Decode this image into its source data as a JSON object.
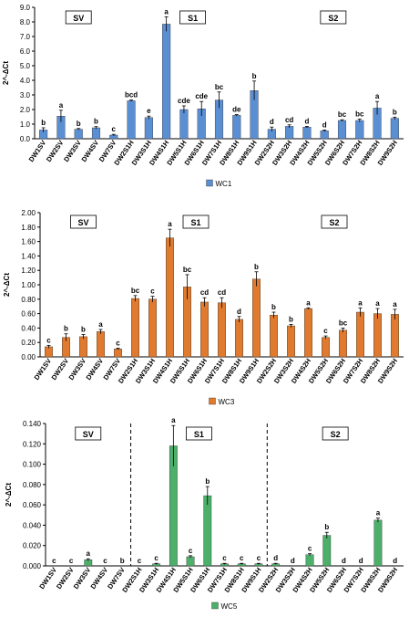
{
  "chart_data": [
    {
      "type": "bar",
      "ylabel": "2^-ΔCt",
      "ylim": [
        0,
        9
      ],
      "yticks": [
        "0.0",
        "1.0",
        "2.0",
        "3.0",
        "4.0",
        "5.0",
        "6.0",
        "7.0",
        "8.0",
        "9.0"
      ],
      "categories": [
        "DW1SV",
        "DW2SV",
        "DW3SV",
        "DW4SV",
        "DW7SV",
        "DW2S1H",
        "DW3S1H",
        "DW4S1H",
        "DW5S1H",
        "DW6S1H",
        "DW7S1H",
        "DW8S1H",
        "DW9S1H",
        "DW2S2H",
        "DW3S2H",
        "DW4S2H",
        "DW5S2H",
        "DW6S2H",
        "DW7S2H",
        "DW8S2H",
        "DW9S2H"
      ],
      "groups": [
        {
          "label": "SV",
          "start": 0,
          "end": 4
        },
        {
          "label": "S1",
          "start": 5,
          "end": 12
        },
        {
          "label": "S2",
          "start": 13,
          "end": 20
        }
      ],
      "dividers": false,
      "series": [
        {
          "name": "WC1",
          "color": "#5B8FD4",
          "values": [
            0.6,
            1.55,
            0.65,
            0.75,
            0.25,
            2.6,
            1.45,
            7.85,
            2.0,
            2.05,
            2.65,
            1.6,
            3.3,
            0.65,
            0.85,
            0.8,
            0.55,
            1.25,
            1.25,
            2.1,
            1.4
          ],
          "errors": [
            0.15,
            0.4,
            0.05,
            0.08,
            0.05,
            0.05,
            0.1,
            0.5,
            0.25,
            0.5,
            0.55,
            0.05,
            0.65,
            0.15,
            0.1,
            0.05,
            0.05,
            0.05,
            0.1,
            0.45,
            0.08
          ],
          "significance": [
            "b",
            "a",
            "b",
            "b",
            "c",
            "bcd",
            "e",
            "a",
            "cde",
            "cde",
            "bc",
            "de",
            "b",
            "d",
            "cd",
            "d",
            "d",
            "bc",
            "bc",
            "a",
            "b"
          ]
        }
      ]
    },
    {
      "type": "bar",
      "ylabel": "2^-ΔCt",
      "ylim": [
        0,
        2
      ],
      "yticks": [
        "0.00",
        "0.20",
        "0.40",
        "0.60",
        "0.80",
        "1.00",
        "1.20",
        "1.40",
        "1.60",
        "1.80",
        "2.00"
      ],
      "categories": [
        "DW1SV",
        "DW2SV",
        "DW3SV",
        "DW4SV",
        "DW7SV",
        "DW2S1H",
        "DW3S1H",
        "DW4S1H",
        "DW5S1H",
        "DW6S1H",
        "DW7S1H",
        "DW8S1H",
        "DW9S1H",
        "DW2S2H",
        "DW3S2H",
        "DW4S2H",
        "DW5S2H",
        "DW6S2H",
        "DW7S2H",
        "DW8S2H",
        "DW9S2H"
      ],
      "groups": [
        {
          "label": "SV",
          "start": 0,
          "end": 4
        },
        {
          "label": "S1",
          "start": 5,
          "end": 12
        },
        {
          "label": "S2",
          "start": 13,
          "end": 20
        }
      ],
      "dividers": false,
      "series": [
        {
          "name": "WC3",
          "color": "#E07A2E",
          "values": [
            0.14,
            0.27,
            0.28,
            0.35,
            0.11,
            0.81,
            0.8,
            1.65,
            0.97,
            0.76,
            0.75,
            0.52,
            1.08,
            0.58,
            0.43,
            0.67,
            0.27,
            0.37,
            0.62,
            0.6,
            0.59
          ],
          "errors": [
            0.02,
            0.05,
            0.03,
            0.03,
            0.01,
            0.04,
            0.04,
            0.12,
            0.17,
            0.06,
            0.07,
            0.04,
            0.1,
            0.04,
            0.02,
            0.01,
            0.02,
            0.03,
            0.06,
            0.07,
            0.07
          ],
          "significance": [
            "c",
            "b",
            "b",
            "a",
            "c",
            "bc",
            "c",
            "a",
            "bc",
            "cd",
            "cd",
            "d",
            "b",
            "b",
            "b",
            "a",
            "c",
            "bc",
            "a",
            "a",
            "a"
          ]
        }
      ]
    },
    {
      "type": "bar",
      "ylabel": "2^-ΔCt",
      "ylim": [
        0,
        0.14
      ],
      "yticks": [
        "0.000",
        "0.020",
        "0.040",
        "0.060",
        "0.080",
        "0.100",
        "0.120",
        "0.140"
      ],
      "categories": [
        "DW1SV",
        "DW2SV",
        "DW3SV",
        "DW4SV",
        "DW7SV",
        "DW2S1H",
        "DW3S1H",
        "DW4S1H",
        "DW5S1H",
        "DW6S1H",
        "DW7S1H",
        "DW8S1H",
        "DW9S1H",
        "DW2S2H",
        "DW3S2H",
        "DW4S2H",
        "DW5S2H",
        "DW6S2H",
        "DW7S2H",
        "DW8S2H",
        "DW9S2H"
      ],
      "groups": [
        {
          "label": "SV",
          "start": 0,
          "end": 4
        },
        {
          "label": "S1",
          "start": 5,
          "end": 12
        },
        {
          "label": "S2",
          "start": 13,
          "end": 20
        }
      ],
      "dividers": true,
      "series": [
        {
          "name": "WC5",
          "color": "#4CAF6A",
          "values": [
            0.0,
            0.0,
            0.006,
            0.0,
            0.0,
            0.0,
            0.002,
            0.118,
            0.009,
            0.069,
            0.002,
            0.002,
            0.002,
            0.002,
            0.0,
            0.011,
            0.03,
            0.0,
            0.0,
            0.045,
            0.0
          ],
          "errors": [
            0,
            0,
            0.001,
            0,
            0,
            0,
            0.0005,
            0.02,
            0.001,
            0.009,
            0.0005,
            0.0005,
            0.0005,
            0.0005,
            0,
            0.001,
            0.003,
            0,
            0,
            0.002,
            0
          ],
          "significance": [
            "c",
            "c",
            "a",
            "c",
            "b",
            "c",
            "c",
            "a",
            "c",
            "b",
            "c",
            "c",
            "c",
            "d",
            "d",
            "c",
            "b",
            "d",
            "d",
            "a",
            "d"
          ]
        }
      ]
    }
  ]
}
